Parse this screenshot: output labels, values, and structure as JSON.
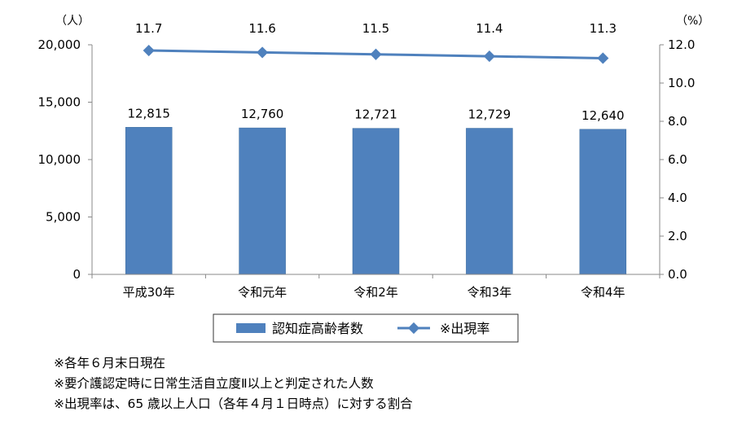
{
  "chart_data": {
    "type": "bar",
    "categories": [
      "平成30年",
      "令和元年",
      "令和2年",
      "令和3年",
      "令和4年"
    ],
    "series": [
      {
        "name": "認知症高齢者数",
        "type": "bar",
        "axis": "left",
        "values": [
          12815,
          12760,
          12721,
          12729,
          12640
        ],
        "labels": [
          "12,815",
          "12,760",
          "12,721",
          "12,729",
          "12,640"
        ],
        "color": "#4F81BD"
      },
      {
        "name": "※出現率",
        "type": "line",
        "axis": "right",
        "values": [
          11.7,
          11.6,
          11.5,
          11.4,
          11.3
        ],
        "labels": [
          "11.7",
          "11.6",
          "11.5",
          "11.4",
          "11.3"
        ],
        "color": "#4F81BD"
      }
    ],
    "y_left": {
      "unit_label": "（人）",
      "range": [
        0,
        20000
      ],
      "ticks": [
        0,
        5000,
        10000,
        15000,
        20000
      ],
      "tick_labels": [
        "0",
        "5,000",
        "10,000",
        "15,000",
        "20,000"
      ]
    },
    "y_right": {
      "unit_label": "（%）",
      "range": [
        0,
        12
      ],
      "ticks": [
        0,
        2,
        4,
        6,
        8,
        10,
        12
      ],
      "tick_labels": [
        "0.0",
        "2.0",
        "4.0",
        "6.0",
        "8.0",
        "10.0",
        "12.0"
      ]
    },
    "grid": false,
    "legend_position": "bottom"
  },
  "notes": [
    "※各年６月末日現在",
    "※要介護認定時に日常生活自立度Ⅱ以上と判定された人数",
    "※出現率は、65 歳以上人口（各年４月１日時点）に対する割合"
  ]
}
